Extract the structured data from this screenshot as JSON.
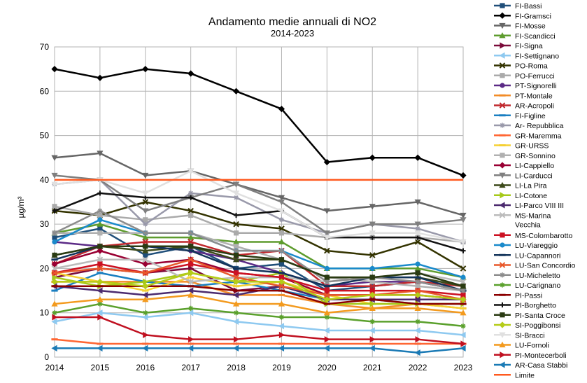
{
  "chart_data": {
    "type": "line",
    "title": "Andamento medie annuali di NO2",
    "subtitle": "2014-2023",
    "xlabel": "",
    "ylabel": "µg/m³",
    "ylim": [
      0,
      70
    ],
    "yticks": [
      0,
      10,
      20,
      30,
      40,
      50,
      60,
      70
    ],
    "categories": [
      "2014",
      "2015",
      "2016",
      "2017",
      "2018",
      "2019",
      "2020",
      "2021",
      "2022",
      "2023"
    ],
    "grid": true,
    "legend_position": "right",
    "series": [
      {
        "name": "FI-Bassi",
        "color": "#1f4e79",
        "marker": "square",
        "values": [
          27,
          29,
          23,
          25,
          20,
          21,
          15,
          16,
          17,
          15
        ]
      },
      {
        "name": "FI-Gramsci",
        "color": "#000000",
        "marker": "diamond",
        "values": [
          65,
          63,
          65,
          64,
          60,
          56,
          44,
          45,
          45,
          41
        ]
      },
      {
        "name": "FI-Mosse",
        "color": "#666666",
        "marker": "tri-down",
        "values": [
          45,
          46,
          41,
          42,
          39,
          36,
          33,
          34,
          35,
          32
        ]
      },
      {
        "name": "FI-Scandicci",
        "color": "#5e9c2e",
        "marker": "tri-up",
        "values": [
          28,
          30,
          27,
          27,
          26,
          26,
          20,
          20,
          20,
          18
        ]
      },
      {
        "name": "FI-Signa",
        "color": "#7a0a3a",
        "marker": "tri-right",
        "values": [
          18,
          20,
          19,
          20,
          15,
          16,
          13,
          13,
          13,
          13
        ]
      },
      {
        "name": "FI-Settignano",
        "color": "#8ec9f0",
        "marker": "tri-left",
        "values": [
          8,
          10,
          9,
          10,
          8,
          7,
          6,
          6,
          6,
          5
        ]
      },
      {
        "name": "PO-Roma",
        "color": "#333300",
        "marker": "x",
        "values": [
          33,
          32,
          35,
          33,
          30,
          29,
          24,
          23,
          26,
          20
        ]
      },
      {
        "name": "PO-Ferrucci",
        "color": "#aaaaaa",
        "marker": "square",
        "values": [
          34,
          32,
          31,
          32,
          28,
          28,
          27,
          27,
          27,
          26
        ]
      },
      {
        "name": "PT-Signorelli",
        "color": "#5b2a86",
        "marker": "circle",
        "values": [
          26,
          25,
          25,
          24,
          22,
          19,
          16,
          17,
          17,
          15
        ]
      },
      {
        "name": "PT-Montale",
        "color": "#f28c28",
        "marker": "dash",
        "values": [
          17,
          17,
          17,
          17,
          14,
          14,
          12,
          11,
          12,
          11
        ]
      },
      {
        "name": "AR-Acropoli",
        "color": "#c0282d",
        "marker": "x",
        "values": [
          21,
          25,
          26,
          26,
          23,
          24,
          16,
          16,
          17,
          16
        ]
      },
      {
        "name": "FI-Figline",
        "color": "#1a7fc1",
        "marker": "dash",
        "values": [
          15,
          19,
          17,
          16,
          17,
          15,
          13,
          13,
          12,
          12
        ]
      },
      {
        "name": "Ar- Repubblica",
        "color": "#9999aa",
        "marker": "star",
        "values": [
          39,
          40,
          30,
          37,
          36,
          31,
          28,
          30,
          29,
          26
        ]
      },
      {
        "name": "GR-Maremma",
        "color": "#ff6633",
        "marker": "dash",
        "values": [
          4,
          3,
          3,
          3,
          3,
          3,
          3,
          3,
          3,
          3
        ]
      },
      {
        "name": "GR-URSS",
        "color": "#f5d033",
        "marker": "dash",
        "values": [
          19,
          17,
          15,
          18,
          16,
          17,
          14,
          12,
          12,
          11
        ]
      },
      {
        "name": "GR-Sonnino",
        "color": "#b0b0b0",
        "marker": "square",
        "values": [
          28,
          28,
          28,
          28,
          25,
          22,
          18,
          17,
          16,
          15
        ]
      },
      {
        "name": "LI-Cappiello",
        "color": "#990033",
        "marker": "diamond",
        "values": [
          21,
          24,
          21,
          22,
          19,
          18,
          14,
          14,
          14,
          13
        ]
      },
      {
        "name": "LI-Carducci",
        "color": "#7f7f7f",
        "marker": "tri-down",
        "values": [
          41,
          40,
          33,
          36,
          39,
          35,
          28,
          30,
          30,
          31
        ]
      },
      {
        "name": "LI-La Pira",
        "color": "#3d4a1a",
        "marker": "tri-up",
        "values": [
          23,
          25,
          24,
          25,
          22,
          22,
          18,
          18,
          18,
          16
        ]
      },
      {
        "name": "LI-Cotone",
        "color": "#a6c91a",
        "marker": "tri-right",
        "values": [
          18,
          16,
          17,
          19,
          17,
          19,
          12,
          12,
          12,
          12
        ]
      },
      {
        "name": "LI-Parco VIII III",
        "color": "#4b2a6e",
        "marker": "tri-left",
        "values": [
          16,
          15,
          14,
          15,
          14,
          16,
          13,
          13,
          13,
          13
        ]
      },
      {
        "name": "MS-Marina Vecchia",
        "color": "#bbbbbb",
        "marker": "x",
        "values": [
          20,
          22,
          22,
          17,
          18,
          18,
          17,
          18,
          19,
          17
        ]
      },
      {
        "name": "MS-Colombarotto",
        "color": "#cc1122",
        "marker": "square",
        "values": [
          19,
          21,
          19,
          21,
          19,
          18,
          15,
          15,
          15,
          14
        ]
      },
      {
        "name": "LU-Viareggio",
        "color": "#1a8acb",
        "marker": "circle",
        "values": [
          26,
          31,
          28,
          28,
          24,
          24,
          20,
          20,
          21,
          18
        ]
      },
      {
        "name": "LU-Capannori",
        "color": "#12335a",
        "marker": "dash",
        "values": [
          22,
          25,
          25,
          24,
          20,
          19,
          16,
          18,
          18,
          15
        ]
      },
      {
        "name": "LU-San Concordio",
        "color": "#e8582b",
        "marker": "x",
        "values": [
          19,
          20,
          19,
          22,
          18,
          16,
          14,
          14,
          15,
          13
        ]
      },
      {
        "name": "LU-Micheletto",
        "color": "#8c8c8c",
        "marker": "star",
        "values": [
          28,
          33,
          28,
          28,
          24,
          24,
          17,
          18,
          17,
          15
        ]
      },
      {
        "name": "LU-Carignano",
        "color": "#5aa02c",
        "marker": "star",
        "values": [
          10,
          12,
          10,
          11,
          10,
          9,
          9,
          8,
          8,
          7
        ]
      },
      {
        "name": "PI-Passi",
        "color": "#8b0000",
        "marker": "dash",
        "values": [
          16,
          16,
          16,
          16,
          15,
          15,
          12,
          13,
          12,
          12
        ]
      },
      {
        "name": "PI-Borghetto",
        "color": "#111111",
        "marker": "plus",
        "values": [
          33,
          37,
          36,
          36,
          32,
          33,
          27,
          27,
          27,
          24
        ]
      },
      {
        "name": "PI-Santa Croce",
        "color": "#2a3b12",
        "marker": "square",
        "values": [
          23,
          25,
          25,
          25,
          23,
          22,
          18,
          18,
          19,
          16
        ]
      },
      {
        "name": "SI-Poggibonsi",
        "color": "#b5cc18",
        "marker": "diamond",
        "values": [
          17,
          17,
          16,
          19,
          17,
          17,
          13,
          14,
          14,
          13
        ]
      },
      {
        "name": "SI-Bracci",
        "color": "#e0e0e0",
        "marker": "tri-down",
        "values": [
          39,
          40,
          37,
          42,
          37,
          33,
          27,
          28,
          28,
          26
        ]
      },
      {
        "name": "LU-Fornoli",
        "color": "#f39a1e",
        "marker": "tri-up",
        "values": [
          12,
          13,
          13,
          14,
          12,
          12,
          10,
          11,
          11,
          10
        ]
      },
      {
        "name": "PI-Montecerboli",
        "color": "#c01020",
        "marker": "tri-right",
        "values": [
          9,
          9,
          5,
          4,
          4,
          5,
          4,
          4,
          4,
          3
        ]
      },
      {
        "name": "AR-Casa Stabbi",
        "color": "#1a7ab5",
        "marker": "tri-left",
        "values": [
          2,
          2,
          2,
          2,
          2,
          2,
          2,
          2,
          1,
          2
        ]
      },
      {
        "name": "Limite",
        "color": "#ff5a1f",
        "marker": "none",
        "values": [
          40,
          40,
          40,
          40,
          40,
          40,
          40,
          40,
          40,
          40
        ]
      }
    ]
  }
}
